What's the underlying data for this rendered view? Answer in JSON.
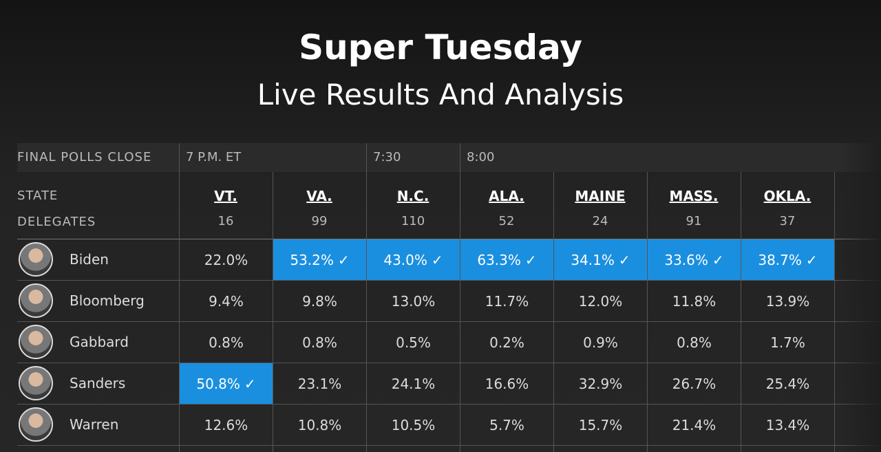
{
  "header": {
    "title": "Super Tuesday",
    "subtitle": "Live Results And Analysis"
  },
  "table": {
    "polls_close_label": "FINAL POLLS CLOSE",
    "state_label": "STATE",
    "delegates_label": "DELEGATES",
    "poll_times": [
      "7 P.M. ET",
      "7:30",
      "8:00"
    ],
    "check_mark": "✓",
    "states": [
      {
        "name": "VT.",
        "delegates": 16
      },
      {
        "name": "VA.",
        "delegates": 99
      },
      {
        "name": "N.C.",
        "delegates": 110
      },
      {
        "name": "ALA.",
        "delegates": 52
      },
      {
        "name": "MAINE",
        "delegates": 24
      },
      {
        "name": "MASS.",
        "delegates": 91
      },
      {
        "name": "OKLA.",
        "delegates": 37
      }
    ],
    "rows": [
      {
        "candidate": "Biden",
        "cells": [
          {
            "text": "22.0%",
            "winner": false
          },
          {
            "text": "53.2%",
            "winner": true
          },
          {
            "text": "43.0%",
            "winner": true
          },
          {
            "text": "63.3%",
            "winner": true
          },
          {
            "text": "34.1%",
            "winner": true
          },
          {
            "text": "33.6%",
            "winner": true
          },
          {
            "text": "38.7%",
            "winner": true
          }
        ]
      },
      {
        "candidate": "Bloomberg",
        "cells": [
          {
            "text": "9.4%",
            "winner": false
          },
          {
            "text": "9.8%",
            "winner": false
          },
          {
            "text": "13.0%",
            "winner": false
          },
          {
            "text": "11.7%",
            "winner": false
          },
          {
            "text": "12.0%",
            "winner": false
          },
          {
            "text": "11.8%",
            "winner": false
          },
          {
            "text": "13.9%",
            "winner": false
          }
        ]
      },
      {
        "candidate": "Gabbard",
        "cells": [
          {
            "text": "0.8%",
            "winner": false
          },
          {
            "text": "0.8%",
            "winner": false
          },
          {
            "text": "0.5%",
            "winner": false
          },
          {
            "text": "0.2%",
            "winner": false
          },
          {
            "text": "0.9%",
            "winner": false
          },
          {
            "text": "0.8%",
            "winner": false
          },
          {
            "text": "1.7%",
            "winner": false
          }
        ]
      },
      {
        "candidate": "Sanders",
        "cells": [
          {
            "text": "50.8%",
            "winner": true
          },
          {
            "text": "23.1%",
            "winner": false
          },
          {
            "text": "24.1%",
            "winner": false
          },
          {
            "text": "16.6%",
            "winner": false
          },
          {
            "text": "32.9%",
            "winner": false
          },
          {
            "text": "26.7%",
            "winner": false
          },
          {
            "text": "25.4%",
            "winner": false
          }
        ]
      },
      {
        "candidate": "Warren",
        "cells": [
          {
            "text": "12.6%",
            "winner": false
          },
          {
            "text": "10.8%",
            "winner": false
          },
          {
            "text": "10.5%",
            "winner": false
          },
          {
            "text": "5.7%",
            "winner": false
          },
          {
            "text": "15.7%",
            "winner": false
          },
          {
            "text": "21.4%",
            "winner": false
          },
          {
            "text": "13.4%",
            "winner": false
          }
        ]
      }
    ]
  }
}
